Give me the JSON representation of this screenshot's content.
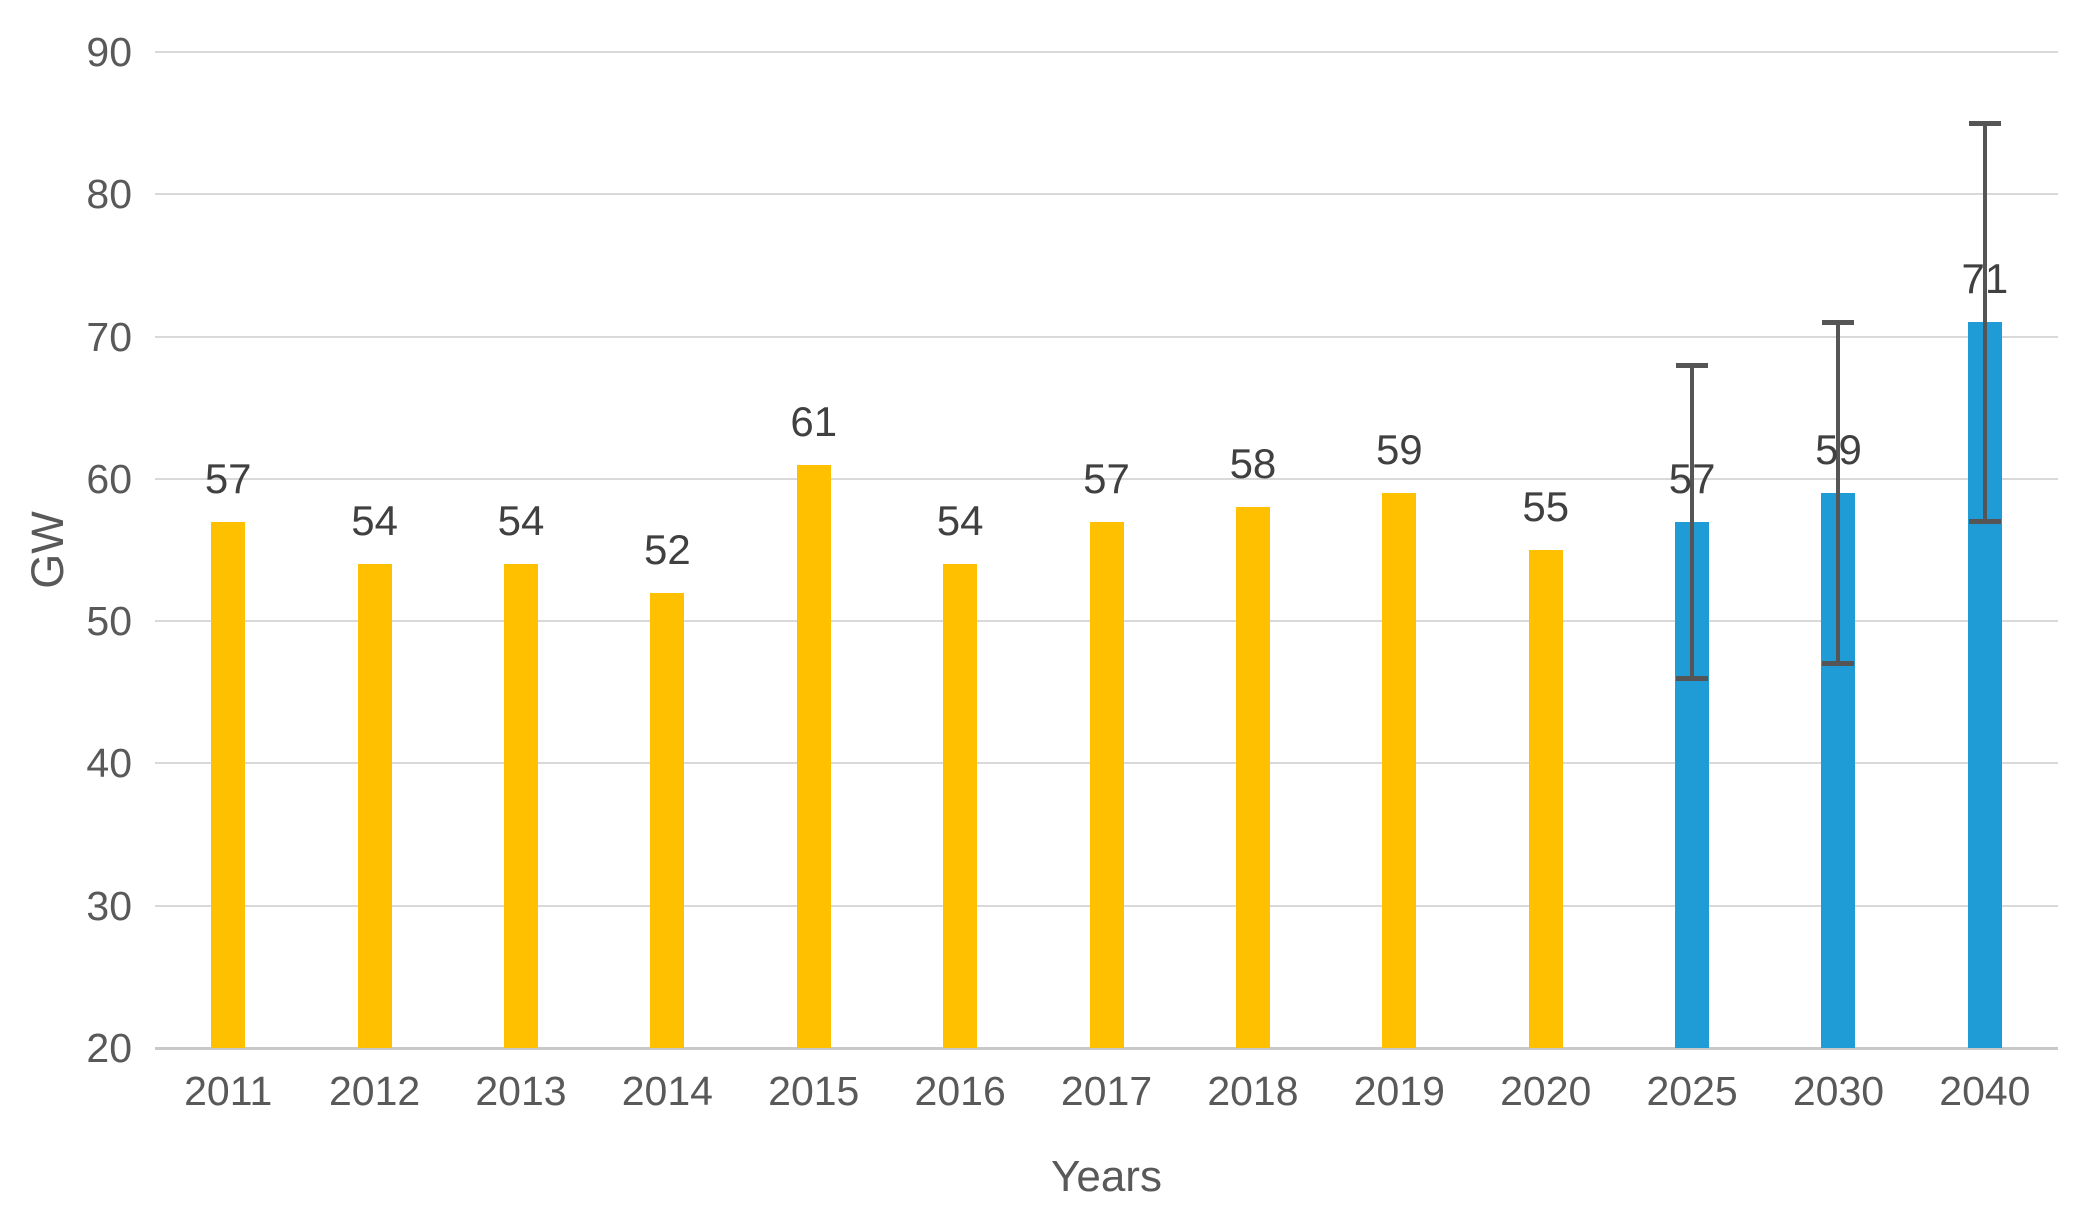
{
  "chart_data": {
    "type": "bar",
    "title": "",
    "xlabel": "Years",
    "ylabel": "GW",
    "ylim": [
      20,
      90
    ],
    "yticks": [
      90,
      80,
      70,
      60,
      50,
      40,
      30,
      20
    ],
    "grid": "horizontal",
    "legend": "none",
    "categories": [
      "2011",
      "2012",
      "2013",
      "2014",
      "2015",
      "2016",
      "2017",
      "2018",
      "2019",
      "2020",
      "2025",
      "2030",
      "2040"
    ],
    "bars": [
      {
        "category": "2011",
        "value": 57,
        "label": "57",
        "series": "historical"
      },
      {
        "category": "2012",
        "value": 54,
        "label": "54",
        "series": "historical"
      },
      {
        "category": "2013",
        "value": 54,
        "label": "54",
        "series": "historical"
      },
      {
        "category": "2014",
        "value": 52,
        "label": "52",
        "series": "historical"
      },
      {
        "category": "2015",
        "value": 61,
        "label": "61",
        "series": "historical"
      },
      {
        "category": "2016",
        "value": 54,
        "label": "54",
        "series": "historical"
      },
      {
        "category": "2017",
        "value": 57,
        "label": "57",
        "series": "historical"
      },
      {
        "category": "2018",
        "value": 58,
        "label": "58",
        "series": "historical"
      },
      {
        "category": "2019",
        "value": 59,
        "label": "59",
        "series": "historical"
      },
      {
        "category": "2020",
        "value": 55,
        "label": "55",
        "series": "historical"
      },
      {
        "category": "2025",
        "value": 57,
        "label": "57",
        "series": "projection",
        "error_low": 46,
        "error_high": 68
      },
      {
        "category": "2030",
        "value": 59,
        "label": "59",
        "series": "projection",
        "error_low": 47,
        "error_high": 71
      },
      {
        "category": "2040",
        "value": 71,
        "label": "71",
        "series": "projection",
        "error_low": 57,
        "error_high": 85
      }
    ],
    "colors": {
      "historical": "#FFC000",
      "projection": "#1F9BD6",
      "error_bar": "#555555",
      "gridline": "#D9D9D9",
      "axis_line": "#C9C9C9",
      "tick_text": "#595959",
      "data_label": "#404040"
    }
  }
}
